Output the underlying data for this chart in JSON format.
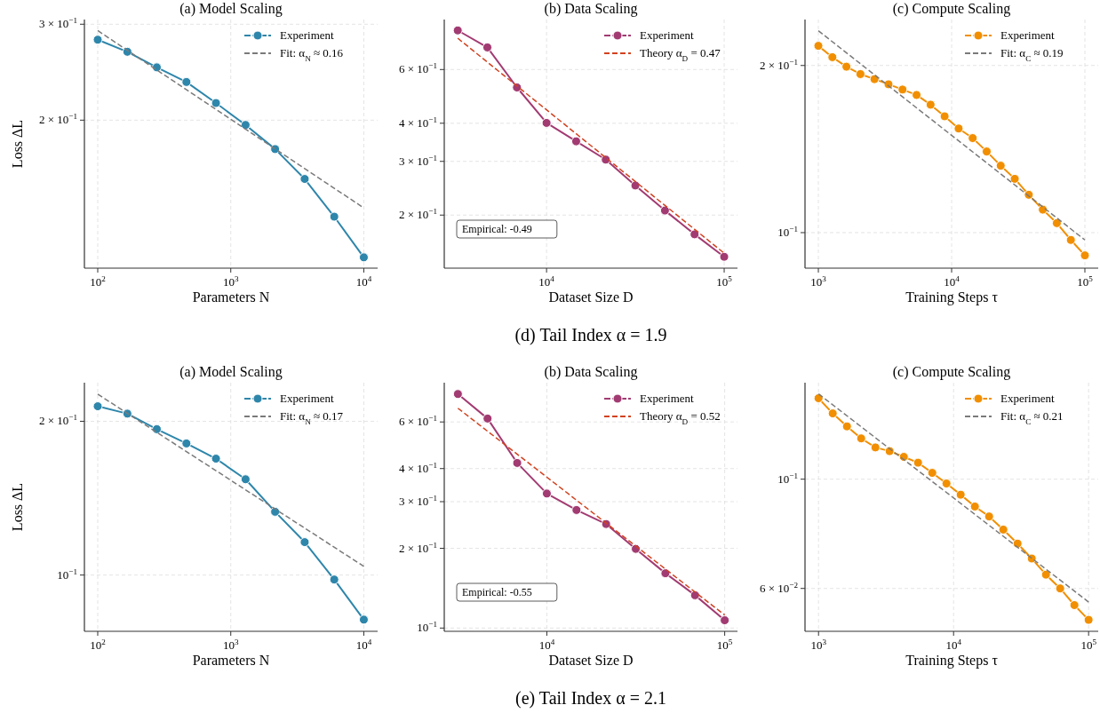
{
  "chart_data": [
    {
      "type": "line",
      "title": "(a) Model Scaling",
      "xlabel": "Parameters N",
      "ylabel": "Loss ΔL",
      "log": "xy",
      "grid": true,
      "legend": "top right",
      "xlim": [
        79.4,
        12700
      ],
      "xticks": [
        {
          "value": 100,
          "label": "10$^{2}$"
        },
        {
          "value": 1000,
          "label": "10$^{3}$"
        },
        {
          "value": 10000,
          "label": "10$^{4}$"
        }
      ],
      "ylim": [
        0.107,
        0.306
      ],
      "yticks": [
        {
          "value": 0.2,
          "label": "2 × 10$^{−1}$"
        },
        {
          "value": 0.3,
          "label": "3 × 10$^{−1}$"
        }
      ],
      "series": [
        {
          "name": "Experiment",
          "color": "#2e86ab",
          "marker": "circle",
          "line_style": "solid",
          "x": [
            100,
            167,
            278,
            464,
            774,
            1292,
            2154,
            3594,
            5995,
            10000
          ],
          "values": [
            0.281,
            0.267,
            0.25,
            0.235,
            0.215,
            0.196,
            0.177,
            0.156,
            0.133,
            0.112
          ]
        },
        {
          "name": "Fit: α$_{N}$ ≈ 0.16",
          "color": "#7a7a7a",
          "marker": "none",
          "line_style": "dashed",
          "x": [
            100,
            10000
          ],
          "values": [
            0.292,
            0.138
          ]
        }
      ]
    },
    {
      "type": "line",
      "title": "(b) Data Scaling",
      "xlabel": "Dataset Size D",
      "log": "xy",
      "grid": true,
      "legend": "top right",
      "annotations": [
        "Empirical: -0.49",
        "(d) Tail Index α = 1.9"
      ],
      "xlim": [
        2655,
        118800
      ],
      "xticks": [
        {
          "value": 10000,
          "label": "10$^{4}$"
        },
        {
          "value": 100000,
          "label": "10$^{5}$"
        }
      ],
      "ylim": [
        0.134,
        0.875
      ],
      "yticks": [
        {
          "value": 0.2,
          "label": "2 × 10$^{−1}$"
        },
        {
          "value": 0.3,
          "label": "3 × 10$^{−1}$"
        },
        {
          "value": 0.4,
          "label": "4 × 10$^{−1}$"
        },
        {
          "value": 0.6,
          "label": "6 × 10$^{−1}$"
        }
      ],
      "series": [
        {
          "name": "Experiment",
          "color": "#a23b72",
          "marker": "circle",
          "line_style": "solid",
          "x": [
            3162,
            4642,
            6813,
            10000,
            14678,
            21544,
            31623,
            46416,
            68129,
            100000
          ],
          "values": [
            0.806,
            0.709,
            0.524,
            0.401,
            0.349,
            0.304,
            0.25,
            0.207,
            0.173,
            0.146
          ]
        },
        {
          "name": "Theory α$_{D}$ = 0.47",
          "color": "#d1421f",
          "marker": "none",
          "line_style": "dashed",
          "x": [
            3162,
            100000
          ],
          "values": [
            0.76,
            0.15
          ]
        }
      ]
    },
    {
      "type": "line",
      "title": "(c) Compute Scaling",
      "xlabel": "Training Steps τ",
      "log": "xy",
      "grid": true,
      "legend": "top right",
      "xlim": [
        794,
        125900
      ],
      "xticks": [
        {
          "value": 1000,
          "label": "10$^{3}$"
        },
        {
          "value": 10000,
          "label": "10$^{4}$"
        },
        {
          "value": 100000,
          "label": "10$^{5}$"
        }
      ],
      "ylim": [
        0.0863,
        0.242
      ],
      "yticks": [
        {
          "value": 0.1,
          "label": "10$^{−1}$"
        },
        {
          "value": 0.2,
          "label": "2 × 10$^{−1}$"
        }
      ],
      "series": [
        {
          "name": "Experiment",
          "color": "#f18f01",
          "marker": "circle",
          "line_style": "solid",
          "x": [
            1000,
            1274,
            1624,
            2069,
            2637,
            3360,
            4281,
            5456,
            6952,
            8859,
            11288,
            14384,
            18330,
            23357,
            29764,
            37927,
            48329,
            61585,
            78476,
            100000
          ],
          "values": [
            0.217,
            0.207,
            0.199,
            0.193,
            0.189,
            0.185,
            0.181,
            0.177,
            0.17,
            0.162,
            0.154,
            0.148,
            0.14,
            0.132,
            0.125,
            0.117,
            0.11,
            0.104,
            0.097,
            0.091
          ]
        },
        {
          "name": "Fit: α$_{C}$ ≈ 0.19",
          "color": "#7a7a7a",
          "marker": "none",
          "line_style": "dashed",
          "x": [
            1000,
            100000
          ],
          "values": [
            0.231,
            0.097
          ]
        }
      ]
    },
    {
      "type": "line",
      "title": "(a) Model Scaling",
      "xlabel": "Parameters N",
      "ylabel": "Loss ΔL",
      "log": "xy",
      "grid": true,
      "legend": "top right",
      "xlim": [
        79.4,
        12700
      ],
      "xticks": [
        {
          "value": 100,
          "label": "10$^{2}$"
        },
        {
          "value": 1000,
          "label": "10$^{3}$"
        },
        {
          "value": 10000,
          "label": "10$^{4}$"
        }
      ],
      "ylim": [
        0.0776,
        0.238
      ],
      "yticks": [
        {
          "value": 0.1,
          "label": "10$^{−1}$"
        },
        {
          "value": 0.2,
          "label": "2 × 10$^{−1}$"
        }
      ],
      "series": [
        {
          "name": "Experiment",
          "color": "#2e86ab",
          "marker": "circle",
          "line_style": "solid",
          "x": [
            100,
            167,
            278,
            464,
            774,
            1292,
            2154,
            3594,
            5995,
            10000
          ],
          "values": [
            0.214,
            0.207,
            0.193,
            0.181,
            0.169,
            0.154,
            0.133,
            0.116,
            0.098,
            0.0818
          ]
        },
        {
          "name": "Fit: α$_{N}$ ≈ 0.17",
          "color": "#7a7a7a",
          "marker": "none",
          "line_style": "dashed",
          "x": [
            100,
            10000
          ],
          "values": [
            0.226,
            0.104
          ]
        }
      ]
    },
    {
      "type": "line",
      "title": "(b) Data Scaling",
      "xlabel": "Dataset Size D",
      "log": "xy",
      "grid": true,
      "legend": "top right",
      "annotations": [
        "Empirical: -0.55",
        "(e) Tail Index α = 2.1"
      ],
      "xlim": [
        2650,
        118000
      ],
      "xticks": [
        {
          "value": 10000,
          "label": "10$^{4}$"
        },
        {
          "value": 100000,
          "label": "10$^{5}$"
        }
      ],
      "ylim": [
        0.0972,
        0.844
      ],
      "yticks": [
        {
          "value": 0.1,
          "label": "10$^{−1}$"
        },
        {
          "value": 0.2,
          "label": "2 × 10$^{−1}$"
        },
        {
          "value": 0.3,
          "label": "3 × 10$^{−1}$"
        },
        {
          "value": 0.4,
          "label": "4 × 10$^{−1}$"
        },
        {
          "value": 0.6,
          "label": "6 × 10$^{−1}$"
        }
      ],
      "series": [
        {
          "name": "Experiment",
          "color": "#a23b72",
          "marker": "circle",
          "line_style": "solid",
          "x": [
            3162,
            4642,
            6813,
            10000,
            14678,
            21544,
            31623,
            46416,
            68129,
            100000
          ],
          "values": [
            0.765,
            0.618,
            0.42,
            0.322,
            0.279,
            0.247,
            0.199,
            0.161,
            0.133,
            0.107
          ]
        },
        {
          "name": "Theory α$_{D}$ = 0.52",
          "color": "#d1421f",
          "marker": "none",
          "line_style": "dashed",
          "x": [
            3162,
            100000
          ],
          "values": [
            0.676,
            0.112
          ]
        }
      ]
    },
    {
      "type": "line",
      "title": "(c) Compute Scaling",
      "xlabel": "Training Steps τ",
      "log": "xy",
      "grid": true,
      "legend": "top right",
      "xlim": [
        794,
        117800
      ],
      "xticks": [
        {
          "value": 1000,
          "label": "10$^{3}$"
        },
        {
          "value": 10000,
          "label": "10$^{4}$"
        },
        {
          "value": 100000,
          "label": "10$^{5}$"
        }
      ],
      "ylim": [
        0.0491,
        0.157
      ],
      "yticks": [
        {
          "value": 0.06,
          "label": "6 × 10$^{−2}$"
        },
        {
          "value": 0.1,
          "label": "10$^{−1}$"
        }
      ],
      "series": [
        {
          "name": "Experiment",
          "color": "#f18f01",
          "marker": "circle",
          "line_style": "solid",
          "x": [
            1000,
            1274,
            1624,
            2069,
            2637,
            3360,
            4281,
            5456,
            6952,
            8859,
            11288,
            14384,
            18330,
            23357,
            29764,
            37927,
            48329,
            61585,
            78476,
            100000
          ],
          "values": [
            0.146,
            0.136,
            0.128,
            0.121,
            0.116,
            0.114,
            0.111,
            0.108,
            0.103,
            0.098,
            0.093,
            0.088,
            0.084,
            0.079,
            0.074,
            0.069,
            0.064,
            0.06,
            0.0555,
            0.0518
          ]
        },
        {
          "name": "Fit: α$_{C}$ ≈ 0.21",
          "color": "#7a7a7a",
          "marker": "none",
          "line_style": "dashed",
          "x": [
            1000,
            100000
          ],
          "values": [
            0.149,
            0.0563
          ]
        }
      ]
    }
  ]
}
